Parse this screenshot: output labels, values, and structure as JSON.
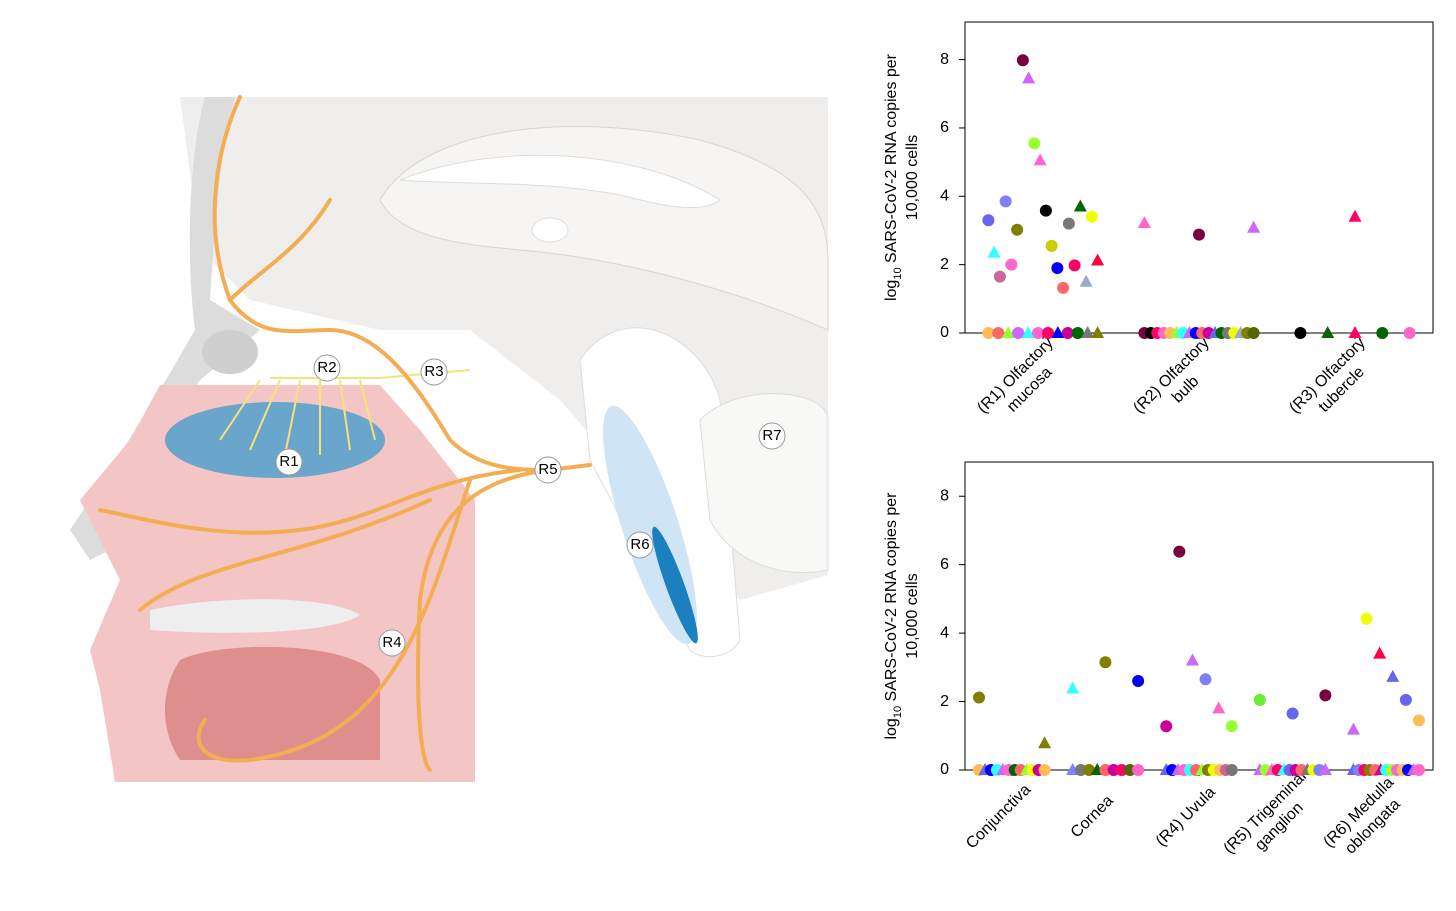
{
  "diagram": {
    "labels": [
      "R1",
      "R2",
      "R3",
      "R4",
      "R5",
      "R6",
      "R7"
    ]
  },
  "chart_data": [
    {
      "type": "strip",
      "ylabel_prefix": "log",
      "ylabel_sub": "10",
      "ylabel_rest": " SARS-CoV-2 RNA copies per",
      "ylabel_line2": "10,000 cells",
      "categories": [
        [
          "(R1) Olfactory",
          "mucosa"
        ],
        [
          "(R2) Olfactory",
          "bulb"
        ],
        [
          "(R3) Olfactory",
          "tubercle"
        ]
      ],
      "ylim": [
        0,
        9.1
      ],
      "yticks": [
        0,
        2,
        4,
        6,
        8
      ],
      "groups": [
        {
          "values": [
            3.3,
            2.35,
            1.65,
            3.85,
            2.0,
            3.02,
            7.98,
            7.45,
            5.55,
            5.05,
            3.58,
            2.55,
            1.9,
            1.32,
            3.2,
            1.98,
            3.7,
            1.5,
            3.4,
            2.12,
            0,
            0,
            0,
            0,
            0,
            0,
            0,
            0,
            0,
            0,
            0,
            0
          ],
          "colors": [
            "#6666ee",
            "#33ffff",
            "#cc6699",
            "#8080ff",
            "#ff66cc",
            "#808000",
            "#7a0040",
            "#cc66ff",
            "#99ff33",
            "#ff66cc",
            "#000000",
            "#cccc00",
            "#0000ff",
            "#ff6666",
            "#777777",
            "#ff0066",
            "#006600",
            "#99aacc",
            "#eeff00",
            "#ff0044",
            "#ffbb55",
            "#ff6666",
            "#99ff33",
            "#cc66ff",
            "#33ffff",
            "#ff66cc",
            "#ff0066",
            "#0000ff",
            "#cc0099",
            "#006600",
            "#777777",
            "#808000"
          ],
          "markers": [
            "circle",
            "triangle",
            "circle",
            "circle",
            "circle",
            "circle",
            "circle",
            "triangle",
            "circle",
            "triangle",
            "circle",
            "circle",
            "circle",
            "circle",
            "circle",
            "circle",
            "triangle",
            "triangle",
            "circle",
            "triangle",
            "circle",
            "circle",
            "triangle",
            "circle",
            "triangle",
            "circle",
            "circle",
            "triangle",
            "circle",
            "circle",
            "triangle",
            "triangle"
          ]
        },
        {
          "values": [
            3.22,
            2.88,
            3.08,
            0,
            0,
            0,
            0,
            0,
            0,
            0,
            0,
            0,
            0,
            0,
            0,
            0,
            0,
            0,
            0,
            0,
            0
          ],
          "colors": [
            "#ff66cc",
            "#7a0040",
            "#cc66ff",
            "#7a0040",
            "#000000",
            "#ff0066",
            "#ff66cc",
            "#ffbb55",
            "#99ff33",
            "#33ffff",
            "#cc66ff",
            "#0000ff",
            "#ff6666",
            "#cc0099",
            "#6666ee",
            "#006600",
            "#777777",
            "#eeff00",
            "#99aacc",
            "#808000",
            "#556600"
          ],
          "markers": [
            "triangle",
            "circle",
            "triangle",
            "circle",
            "circle",
            "circle",
            "circle",
            "circle",
            "triangle",
            "circle",
            "triangle",
            "circle",
            "circle",
            "circle",
            "triangle",
            "circle",
            "circle",
            "circle",
            "triangle",
            "circle",
            "circle"
          ]
        },
        {
          "values": [
            3.4,
            0,
            0,
            0,
            0,
            0
          ],
          "colors": [
            "#ff0066",
            "#000000",
            "#006600",
            "#ff0066",
            "#006600",
            "#ff66cc"
          ],
          "markers": [
            "triangle",
            "circle",
            "triangle",
            "triangle",
            "circle",
            "circle"
          ]
        }
      ]
    },
    {
      "type": "strip",
      "ylabel_prefix": "log",
      "ylabel_sub": "10",
      "ylabel_rest": " SARS-CoV-2 RNA copies per",
      "ylabel_line2": "10,000 cells",
      "categories": [
        [
          "Conjunctiva"
        ],
        [
          "Cornea"
        ],
        [
          "(R4) Uvula"
        ],
        [
          "(R5) Trigeminal",
          "ganglion"
        ],
        [
          "(R6) Medulla",
          "oblongata"
        ]
      ],
      "ylim": [
        0,
        9
      ],
      "yticks": [
        0,
        2,
        4,
        6,
        8
      ],
      "groups": [
        {
          "values": [
            2.12,
            0.78,
            0,
            0,
            0,
            0,
            0,
            0,
            0,
            0,
            0,
            0,
            0,
            0
          ],
          "colors": [
            "#808000",
            "#808000",
            "#ffbb55",
            "#6666ee",
            "#0000ff",
            "#33ffff",
            "#cc66ff",
            "#ff66cc",
            "#006600",
            "#ff6666",
            "#99ff33",
            "#eeff00",
            "#cc0099",
            "#ffbb55"
          ],
          "markers": [
            "circle",
            "triangle",
            "circle",
            "triangle",
            "circle",
            "circle",
            "triangle",
            "circle",
            "circle",
            "circle",
            "triangle",
            "circle",
            "circle",
            "circle"
          ]
        },
        {
          "values": [
            2.38,
            3.15,
            2.6,
            0,
            0,
            0,
            0,
            0,
            0,
            0,
            0,
            0
          ],
          "colors": [
            "#33ffff",
            "#808000",
            "#0000ff",
            "#8080ff",
            "#777777",
            "#808000",
            "#006600",
            "#ff6666",
            "#cc0099",
            "#ff0066",
            "#556600",
            "#ff66cc"
          ],
          "markers": [
            "triangle",
            "circle",
            "circle",
            "triangle",
            "circle",
            "circle",
            "triangle",
            "circle",
            "circle",
            "circle",
            "circle",
            "circle"
          ]
        },
        {
          "values": [
            1.28,
            6.38,
            3.2,
            2.65,
            1.8,
            1.28,
            0,
            0,
            0,
            0,
            0,
            0,
            0,
            0,
            0,
            0,
            0,
            0
          ],
          "colors": [
            "#cc0099",
            "#7a0040",
            "#cc66ff",
            "#8080ff",
            "#ff66cc",
            "#99ff33",
            "#6666ee",
            "#0000ff",
            "#cc66ff",
            "#ff66cc",
            "#33ffff",
            "#ff6666",
            "#99ff33",
            "#808000",
            "#eeff00",
            "#ffbb55",
            "#cc6699",
            "#777777"
          ],
          "markers": [
            "circle",
            "circle",
            "triangle",
            "circle",
            "triangle",
            "circle",
            "triangle",
            "circle",
            "triangle",
            "circle",
            "circle",
            "circle",
            "triangle",
            "circle",
            "circle",
            "circle",
            "circle",
            "circle"
          ]
        },
        {
          "values": [
            2.05,
            1.65,
            2.18,
            0,
            0,
            0,
            0,
            0,
            0,
            0,
            0,
            0,
            0,
            0,
            0
          ],
          "colors": [
            "#66ee33",
            "#6666ee",
            "#7a0040",
            "#cc66ff",
            "#99ff33",
            "#ff66cc",
            "#ff0066",
            "#33ffff",
            "#6666ee",
            "#cc0099",
            "#ff6666",
            "#777777",
            "#eeff00",
            "#8080ff",
            "#cc66ff"
          ],
          "markers": [
            "circle",
            "circle",
            "circle",
            "triangle",
            "circle",
            "triangle",
            "circle",
            "triangle",
            "circle",
            "circle",
            "circle",
            "triangle",
            "circle",
            "circle",
            "triangle"
          ]
        },
        {
          "values": [
            1.18,
            4.42,
            3.4,
            2.72,
            2.05,
            1.45,
            0,
            0,
            0,
            0,
            0,
            0,
            0,
            0,
            0,
            0,
            0,
            0,
            0
          ],
          "colors": [
            "#cc66ff",
            "#eeff00",
            "#ff0044",
            "#6666ee",
            "#6666ee",
            "#ffbb55",
            "#6666ee",
            "#8080ff",
            "#ff0066",
            "#808000",
            "#ff6666",
            "#cc0099",
            "#33ffff",
            "#99ff33",
            "#ff66cc",
            "#ffbb55",
            "#0000ff",
            "#cc66ff",
            "#ff66cc"
          ],
          "markers": [
            "triangle",
            "circle",
            "triangle",
            "triangle",
            "circle",
            "circle",
            "triangle",
            "circle",
            "circle",
            "circle",
            "circle",
            "triangle",
            "circle",
            "circle",
            "circle",
            "circle",
            "circle",
            "triangle",
            "circle"
          ]
        }
      ]
    }
  ]
}
